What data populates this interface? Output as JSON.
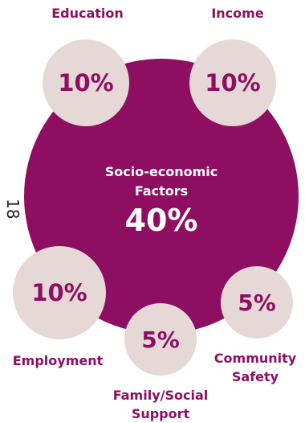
{
  "colors": {
    "main": "#8e0f62",
    "small": "#e6d8d6",
    "text": "#8e0f62"
  },
  "center": {
    "title_line1": "Socio-economic",
    "title_line2": "Factors",
    "percent": "40%"
  },
  "factors": [
    {
      "label": "Education",
      "percent": "10%"
    },
    {
      "label": "Income",
      "percent": "10%"
    },
    {
      "label": "Employment",
      "percent": "10%"
    },
    {
      "label_line1": "Family/Social",
      "label_line2": "Support",
      "percent": "5%"
    },
    {
      "label_line1": "Community",
      "label_line2": "Safety",
      "percent": "5%"
    }
  ],
  "page_number": "18"
}
